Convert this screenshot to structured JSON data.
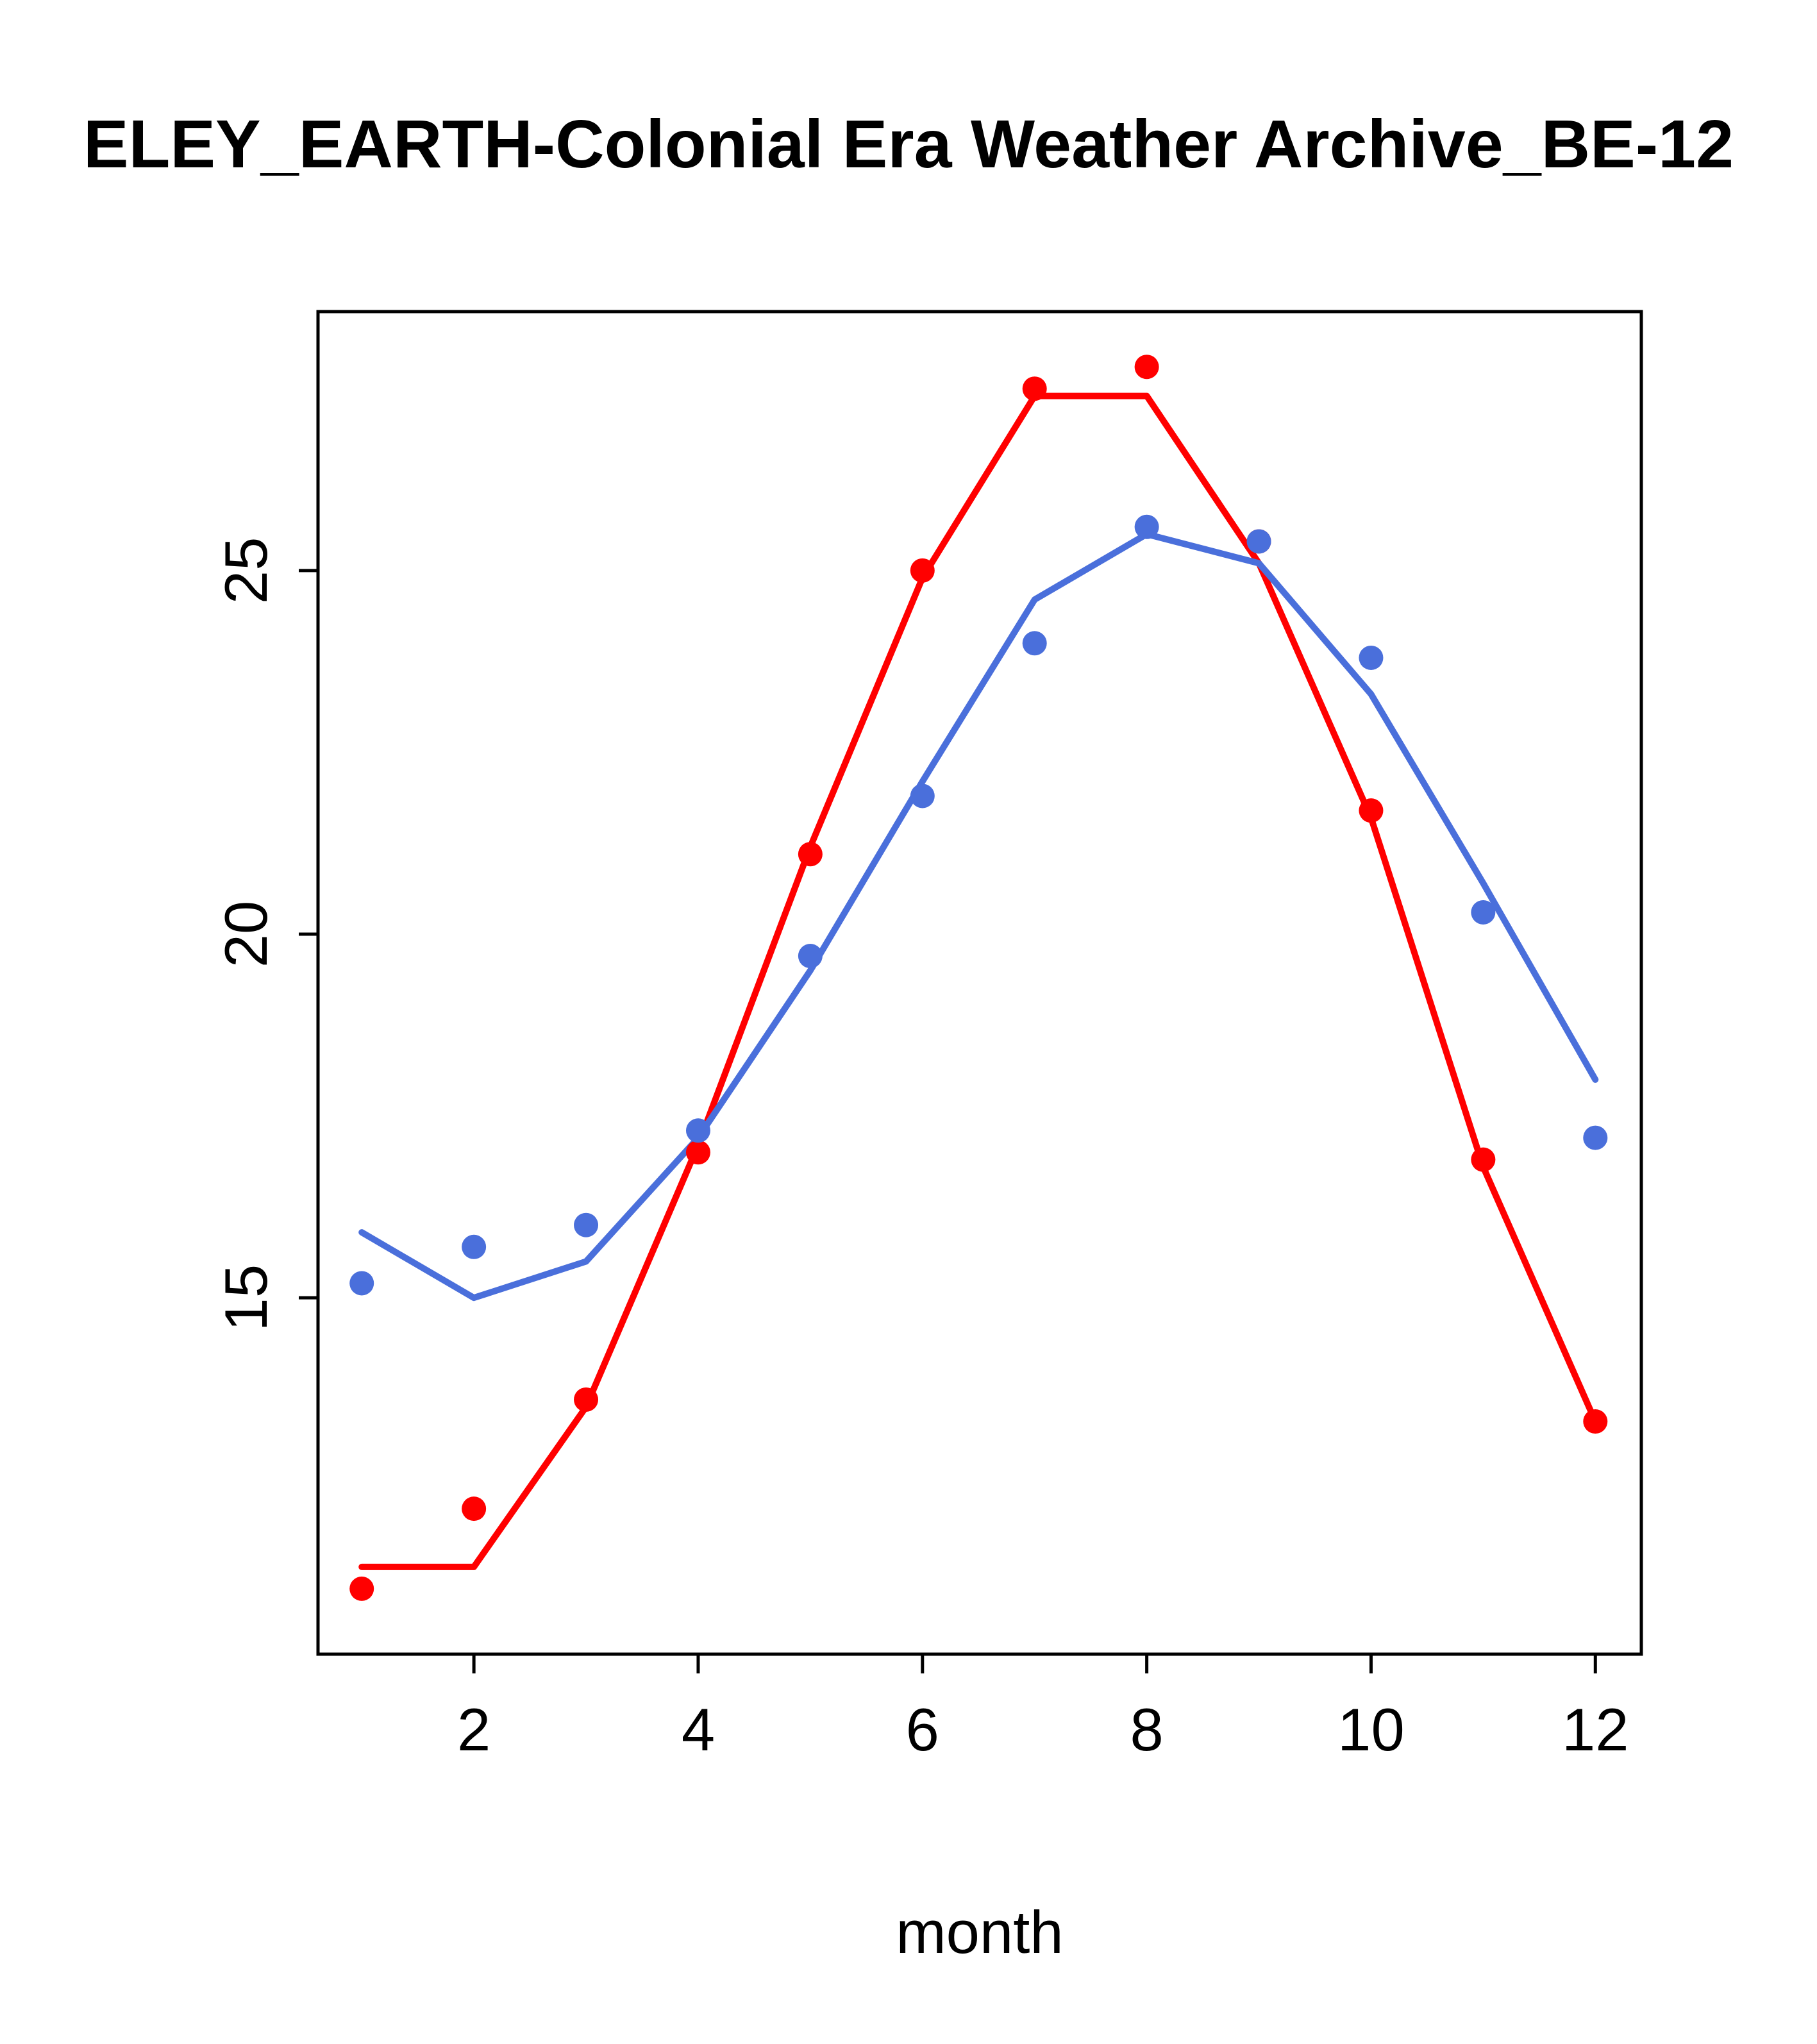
{
  "title": "ELEY_EARTH-Colonial Era Weather Archive_BE-12",
  "xlabel": "month",
  "colors": {
    "series_red": "#ff0000",
    "series_blue": "#4a6fdb",
    "axis": "#000000",
    "background": "#ffffff"
  },
  "chart_data": {
    "type": "scatter",
    "title": "ELEY_EARTH-Colonial Era Weather Archive_BE-12",
    "xlabel": "month",
    "ylabel": "",
    "x": [
      1,
      2,
      3,
      4,
      5,
      6,
      7,
      8,
      9,
      10,
      11,
      12
    ],
    "x_ticks": [
      2,
      4,
      6,
      8,
      10,
      12
    ],
    "y_ticks": [
      15,
      20,
      25
    ],
    "xlim": [
      0.61,
      12.41
    ],
    "ylim": [
      10.1,
      28.56
    ],
    "grid": false,
    "legend": "none",
    "series": [
      {
        "name": "red-points",
        "kind": "points",
        "color": "#ff0000",
        "values": [
          11.0,
          12.1,
          13.6,
          17.0,
          21.1,
          25.0,
          27.5,
          27.8,
          25.4,
          21.7,
          16.9,
          13.3
        ]
      },
      {
        "name": "red-line",
        "kind": "line",
        "color": "#ff0000",
        "values": [
          11.3,
          11.3,
          13.5,
          17.1,
          21.2,
          24.9,
          27.4,
          27.4,
          25.1,
          21.6,
          16.8,
          13.3
        ]
      },
      {
        "name": "blue-points",
        "kind": "points",
        "color": "#4a6fdb",
        "values": [
          15.2,
          15.7,
          16.0,
          17.3,
          19.7,
          21.9,
          24.0,
          25.6,
          25.4,
          23.8,
          20.3,
          17.2
        ]
      },
      {
        "name": "blue-line",
        "kind": "line",
        "color": "#4a6fdb",
        "values": [
          15.9,
          15.0,
          15.5,
          17.2,
          19.5,
          22.1,
          24.6,
          25.5,
          25.1,
          23.3,
          20.7,
          18.0
        ]
      }
    ]
  }
}
